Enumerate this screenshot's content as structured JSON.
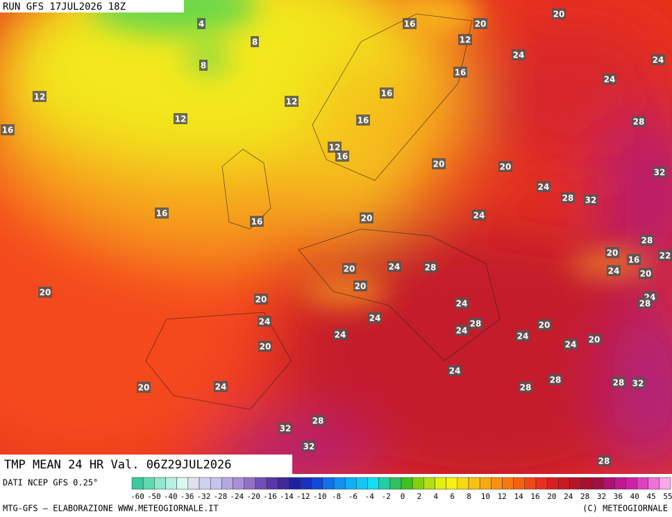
{
  "header": {
    "run": "RUN GFS 17JUL2026 18Z"
  },
  "map": {
    "labels": [
      4,
      8,
      8,
      16,
      20,
      20,
      12,
      24,
      24,
      16,
      24,
      12,
      12,
      16,
      12,
      16,
      16,
      28,
      12,
      16,
      20,
      20,
      32,
      24,
      28,
      32,
      16,
      16,
      20,
      24,
      28,
      20,
      16,
      22,
      24,
      20,
      20,
      24,
      28,
      20,
      20,
      20,
      24,
      28,
      24,
      24,
      24,
      28,
      24,
      20,
      24,
      24,
      24,
      20,
      20,
      24,
      20,
      24,
      28,
      28,
      28,
      32,
      28,
      32,
      32,
      28
    ]
  },
  "footer": {
    "title": "TMP MEAN 24 HR Val. 06Z29JUL2026",
    "source": "DATI NCEP GFS 0.25°",
    "scale": [
      -60,
      -50,
      -40,
      -36,
      -32,
      -28,
      -24,
      -20,
      -16,
      -14,
      -12,
      -10,
      -8,
      -6,
      -4,
      -2,
      0,
      2,
      4,
      6,
      8,
      10,
      12,
      14,
      16,
      20,
      24,
      28,
      32,
      36,
      40,
      45,
      55
    ],
    "credit": "MTG-GFS — ELABORAZIONE WWW.METEOGIORNALE.IT",
    "copyright": "(C) METEOGIORNALE"
  }
}
